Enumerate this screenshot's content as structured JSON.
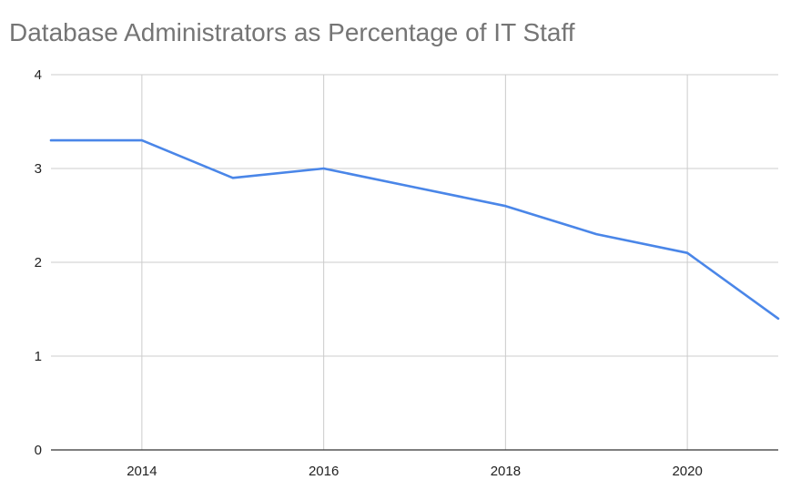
{
  "chart_data": {
    "type": "line",
    "title": "Database Administrators as Percentage of IT Staff",
    "xlabel": "",
    "ylabel": "",
    "x": [
      2013,
      2014,
      2015,
      2016,
      2017,
      2018,
      2019,
      2020,
      2021
    ],
    "series": [
      {
        "values": [
          3.3,
          3.3,
          2.9,
          3.0,
          2.8,
          2.6,
          2.3,
          2.1,
          1.4
        ]
      }
    ],
    "xlim": [
      2013,
      2021
    ],
    "ylim": [
      0,
      4
    ],
    "x_ticks": [
      2014,
      2016,
      2018,
      2020
    ],
    "x_tick_labels": [
      "2014",
      "2016",
      "2018",
      "2020"
    ],
    "y_ticks": [
      0,
      1,
      2,
      3,
      4
    ],
    "y_tick_labels": [
      "0",
      "1",
      "2",
      "3",
      "4"
    ],
    "grid": true,
    "colors": {
      "line": "#4a86e8",
      "grid": "#cccccc",
      "axis": "#333333"
    }
  }
}
